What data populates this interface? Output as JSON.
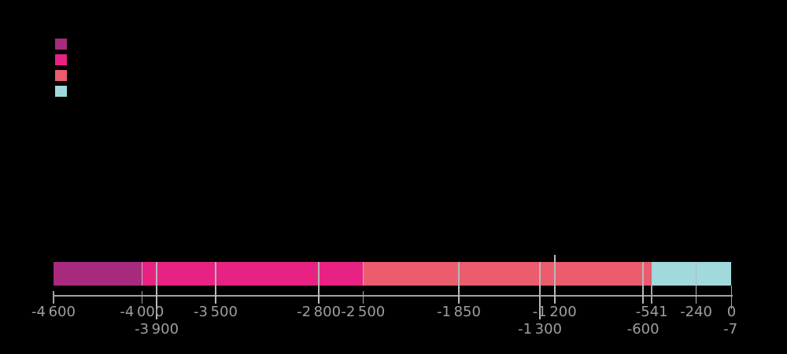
{
  "window": {
    "background": "#000000"
  },
  "legend": {
    "swatches": [
      {
        "name": "legend-swatch-1",
        "color": "#a82a7e"
      },
      {
        "name": "legend-swatch-2",
        "color": "#e82283"
      },
      {
        "name": "legend-swatch-3",
        "color": "#ea5c6e"
      },
      {
        "name": "legend-swatch-4",
        "color": "#a1dadd"
      }
    ]
  },
  "chart_data": {
    "type": "bar",
    "subtype": "horizontal-stacked-timeline",
    "xlim": [
      -4600,
      0
    ],
    "grid": false,
    "legend_position": "top-left",
    "colors": {
      "axis": "#a3a3a3",
      "label": "#9e9e9e",
      "divider": "#b9b9b9"
    },
    "segments": [
      {
        "start": -4600,
        "end": -4000,
        "color": "#a82a7e"
      },
      {
        "start": -4000,
        "end": -2500,
        "color": "#e82283"
      },
      {
        "start": -2500,
        "end": -541,
        "color": "#ea5c6e"
      },
      {
        "start": -541,
        "end": 0,
        "color": "#a1dadd"
      }
    ],
    "ticks": [
      {
        "value": -4600,
        "label": "-4 600",
        "row": 1,
        "line": "axis"
      },
      {
        "value": -4000,
        "label": "-4 000",
        "row": 1,
        "line": "axis",
        "divider": true
      },
      {
        "value": -3900,
        "label": "-3 900",
        "row": 2,
        "line": "through-long"
      },
      {
        "value": -3500,
        "label": "-3 500",
        "row": 1,
        "line": "through"
      },
      {
        "value": -2800,
        "label": "-2 800",
        "row": 1,
        "line": "through"
      },
      {
        "value": -2500,
        "label": "-2 500",
        "row": 1,
        "line": "axis",
        "divider": true
      },
      {
        "value": -1850,
        "label": "-1 850",
        "row": 1,
        "line": "through"
      },
      {
        "value": -1300,
        "label": "-1 300",
        "row": 2,
        "line": "through-long"
      },
      {
        "value": -1200,
        "label": "-1 200",
        "row": 1,
        "line": "above"
      },
      {
        "value": -600,
        "label": "-600",
        "row": 2,
        "line": "through"
      },
      {
        "value": -541,
        "label": "-541",
        "row": 1,
        "line": "bar-bottom"
      },
      {
        "value": -240,
        "label": "-240",
        "row": 1,
        "line": "through"
      },
      {
        "value": -7,
        "label": "-7",
        "row": 2,
        "line": "none"
      },
      {
        "value": 0,
        "label": "0",
        "row": 1,
        "line": "bar-bottom-long"
      }
    ]
  }
}
